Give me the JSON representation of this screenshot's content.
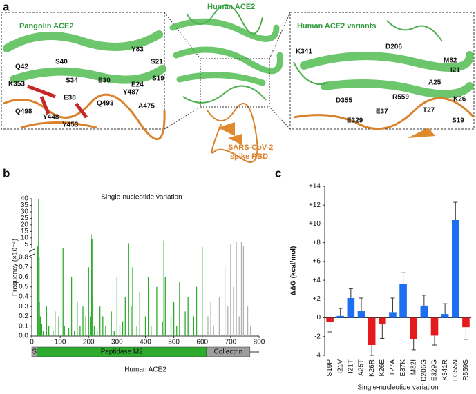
{
  "panel_labels": [
    "a",
    "b",
    "c"
  ],
  "panel_a": {
    "titles": [
      "Pangolin ACE2",
      "Human ACE2",
      "Human ACE2 variants",
      "SARS-CoV-2",
      "spike RBD"
    ],
    "residues_left": [
      "Q42",
      "S40",
      "Y83",
      "S21",
      "K353",
      "S34",
      "E30",
      "E24",
      "S19",
      "E38",
      "Y487",
      "Q498",
      "Y448",
      "Q493",
      "A475",
      "Y453"
    ],
    "residues_right": [
      "K341",
      "D206",
      "M82",
      "I21",
      "A25",
      "D355",
      "R559",
      "K26",
      "T27",
      "E37",
      "E329",
      "S19"
    ]
  },
  "chart_data": [
    {
      "type": "spikes",
      "title": "Single-nucleotide variation",
      "xlabel": "Human ACE2",
      "ylabel": "Frequency (×10⁻⁴)",
      "xlim": [
        0,
        800
      ],
      "xticks": [
        0,
        100,
        200,
        300,
        400,
        500,
        600,
        700,
        800
      ],
      "ylim": [
        0,
        40
      ],
      "ybreak": [
        0.8,
        2
      ],
      "yticks": [
        {
          "value": 0,
          "label": "0.0"
        },
        0.1,
        0.2,
        0.3,
        0.4,
        0.5,
        0.6,
        0.7,
        0.8,
        5,
        10,
        15,
        20,
        25,
        30,
        35,
        40
      ],
      "series": [
        {
          "color": "#2eaa2e",
          "x": [
            19,
            21,
            24,
            26,
            27,
            30,
            35,
            40,
            52,
            60,
            75,
            82,
            95,
            110,
            115,
            130,
            140,
            150,
            160,
            170,
            180,
            190,
            200,
            206,
            209,
            212,
            215,
            220,
            230,
            240,
            250,
            260,
            280,
            290,
            300,
            310,
            320,
            329,
            341,
            350,
            355,
            370,
            380,
            400,
            410,
            420,
            440,
            460,
            465,
            470,
            490,
            500,
            510,
            520,
            540,
            550,
            570,
            580,
            600
          ],
          "values": [
            0.1,
            3.5,
            40,
            0.8,
            0.35,
            0.2,
            0.12,
            0.05,
            0.3,
            0.1,
            0.05,
            0.25,
            0.2,
            2.5,
            0.1,
            0.08,
            0.6,
            0.05,
            0.35,
            0.1,
            0.3,
            0.2,
            0.7,
            0.2,
            13,
            9,
            0.4,
            0.1,
            0.05,
            0.3,
            0.2,
            0.1,
            0.25,
            0.05,
            0.6,
            0.1,
            0.15,
            0.4,
            6,
            0.3,
            0.7,
            0.1,
            0.45,
            0.2,
            0.6,
            0.1,
            0.5,
            0.15,
            8,
            0.6,
            0.2,
            0.35,
            0.1,
            0.55,
            0.25,
            0.4,
            0.2,
            0.5,
            3
          ]
        },
        {
          "color": "#b0b0b0",
          "x": [
            620,
            630,
            640,
            660,
            680,
            690,
            700,
            710,
            720,
            730,
            738,
            745,
            760,
            770
          ],
          "values": [
            0.2,
            0.35,
            0.1,
            0.4,
            0.7,
            0.3,
            5,
            0.5,
            7,
            0.2,
            7,
            4,
            0.3,
            0.1
          ]
        }
      ],
      "domains": [
        {
          "label": "S",
          "start": 0,
          "end": 18,
          "color": "#9e9e9e"
        },
        {
          "label": "Peptidase M2",
          "start": 18,
          "end": 615,
          "color": "#2eaa2e"
        },
        {
          "label": "Collectrin",
          "start": 615,
          "end": 768,
          "color": "#9e9e9e"
        }
      ]
    },
    {
      "type": "bar",
      "xlabel": "Single-nucleotide variation",
      "ylabel": "ΔΔG (kcal/mol)",
      "categories": [
        "S19P",
        "I21V",
        "I21T",
        "A25T",
        "K26R",
        "K26E",
        "T27A",
        "E37K",
        "M82I",
        "D206G",
        "E329G",
        "K341R",
        "D355N",
        "R559S"
      ],
      "values": [
        -0.4,
        0.2,
        2.1,
        0.7,
        -2.9,
        -0.7,
        0.6,
        3.6,
        -2.3,
        1.3,
        -1.9,
        0.4,
        10.4,
        -1.0
      ],
      "errors": [
        1.1,
        0.8,
        1.0,
        1.4,
        1.1,
        1.5,
        1.5,
        1.2,
        1.1,
        1.1,
        1.0,
        1.1,
        1.9,
        1.3
      ],
      "colors": [
        "#e41a1c",
        "#1c6ef2",
        "#1c6ef2",
        "#1c6ef2",
        "#e41a1c",
        "#e41a1c",
        "#1c6ef2",
        "#1c6ef2",
        "#e41a1c",
        "#1c6ef2",
        "#e41a1c",
        "#1c6ef2",
        "#1c6ef2",
        "#e41a1c"
      ],
      "ylim": [
        -4,
        14
      ],
      "yticks": [
        -4,
        -2,
        0,
        {
          "value": 2,
          "label": "+2"
        },
        {
          "value": 4,
          "label": "+4"
        },
        {
          "value": 6,
          "label": "+6"
        },
        {
          "value": 8,
          "label": "+8"
        },
        {
          "value": 10,
          "label": "+10"
        },
        {
          "value": 12,
          "label": "+12"
        },
        {
          "value": 14,
          "label": "+14"
        }
      ]
    }
  ]
}
